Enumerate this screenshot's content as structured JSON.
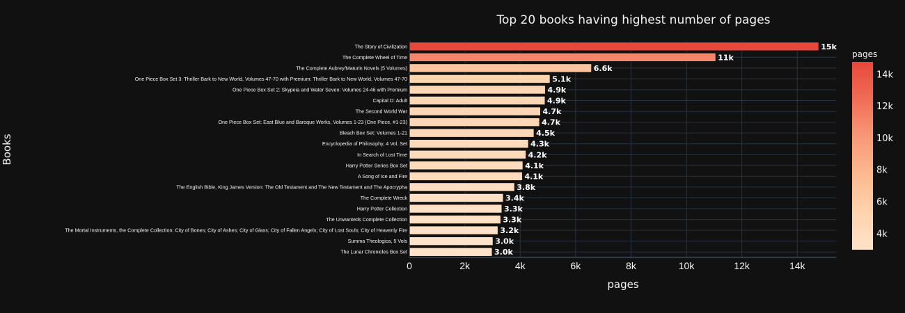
{
  "chart_data": {
    "type": "bar",
    "orientation": "horizontal",
    "title": "Top 20 books having highest number of pages",
    "xlabel": "pages",
    "ylabel": "Books",
    "xlim": [
      0,
      15400
    ],
    "xticks": [
      0,
      2000,
      4000,
      6000,
      8000,
      10000,
      12000,
      14000
    ],
    "xtick_labels": [
      "0",
      "2k",
      "4k",
      "6k",
      "8k",
      "10k",
      "12k",
      "14k"
    ],
    "grid": true,
    "categories": [
      "The Story of Civilization",
      "The Complete Wheel of Time",
      "The Complete Aubrey/Maturin Novels (5 Volumes)",
      "One Piece Box Set 3: Thriller Bark to New World, Volumes 47-70 with Premium: Thriller Bark to New World, Volumes 47-70",
      "One Piece Box Set 2: Skypeia and Water Seven: Volumes 24-46 with Premium",
      "Capital D: Adult",
      "The Second World War",
      "One Piece Box Set: East Blue and Baroque Works, Volumes 1-23 (One Piece, #1-23)",
      "Bleach Box Set: Volumes 1-21",
      "Encyclopedia of Philosophy, 4 Vol. Set",
      "In Search of Lost Time",
      "Harry Potter Series Box Set",
      "A Song of Ice and Fire",
      "The English Bible, King James Version: The Old Testament and The New Testament and The Apocrypha",
      "The Complete Wreck",
      "Harry Potter Collection",
      "The Unwanteds Complete Collection",
      "The Mortal Instruments, the Complete Collection: City of Bones; City of Ashes; City of Glass; City of Fallen Angels; City of Lost Souls; City of Heavenly Fire",
      "Summa Theologica, 5 Vols",
      "The Lunar Chronicles Box Set"
    ],
    "values": [
      14777,
      11060,
      6576,
      5080,
      4910,
      4900,
      4736,
      4700,
      4500,
      4300,
      4211,
      4100,
      4081,
      3800,
      3392,
      3342,
      3300,
      3200,
      3020,
      2990
    ],
    "data_labels": [
      "15k",
      "11k",
      "6.6k",
      "5.1k",
      "4.9k",
      "4.9k",
      "4.7k",
      "4.7k",
      "4.5k",
      "4.3k",
      "4.2k",
      "4.1k",
      "4.1k",
      "3.8k",
      "3.4k",
      "3.3k",
      "3.3k",
      "3.2k",
      "3.0k",
      "3.0k"
    ],
    "colorscale": {
      "title": "pages",
      "range": [
        2990,
        14777
      ],
      "stops": [
        "#fee2c9",
        "#fdd3ae",
        "#fcb98f",
        "#f89878",
        "#f06d57",
        "#e8483c"
      ],
      "ticks": [
        4000,
        6000,
        8000,
        10000,
        12000,
        14000
      ],
      "tick_labels": [
        "4k",
        "6k",
        "8k",
        "10k",
        "12k",
        "14k"
      ]
    },
    "colors": {
      "background": "#111111",
      "grid": "#283442",
      "axis_line": "#506784",
      "bar_outline": "#111111"
    }
  }
}
